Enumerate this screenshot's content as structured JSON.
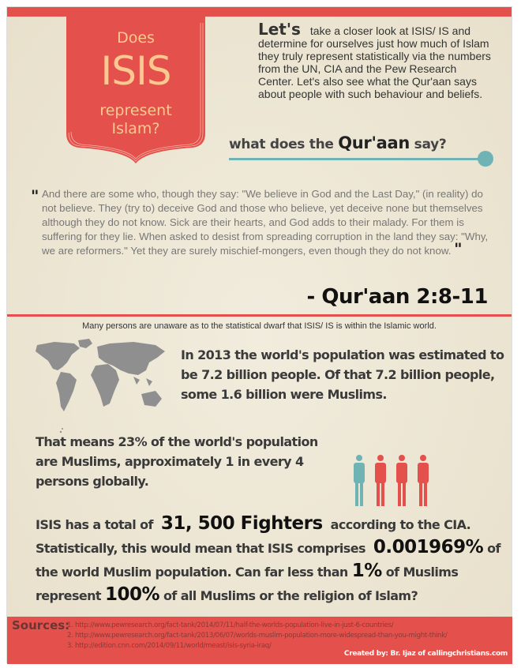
{
  "banner": {
    "line1": "Does",
    "line2": "ISIS",
    "line3": "represent",
    "line4": "Islam?"
  },
  "intro": {
    "lead": "Let's",
    "text": "take a closer look at ISIS/ IS and determine for ourselves just how much of Islam they truly represent statistically via the numbers from the UN, CIA and the Pew Research Center. Let's also see what the Qur'aan says about people with such behaviour and beliefs."
  },
  "quran_heading": {
    "pre": "what does the",
    "key": "Qur'aan",
    "post": "say?"
  },
  "quote": {
    "mark": "\"",
    "text": "And there are some who, though they say: \"We believe in God and the Last Day,\" (in reality) do not believe. They (try to) deceive God and those who believe, yet deceive none but themselves although they do not know. Sick are their hearts, and God adds to their malady. For them is suffering for they lie. When asked to desist from spreading corruption in the land they say: \"Why, we are reformers.\" Yet they are surely mischief-mongers, even though they do not know.",
    "reference": "- Qur'aan 2:8-11"
  },
  "caption": "Many persons are unaware as to the statistical dwarf that ISIS/ IS is within the Islamic world.",
  "population": "In 2013 the world's population was estimated to be 7.2 billion people. Of that 7.2 billion people, some 1.6 billion were Muslims.",
  "share": {
    "text": "That means 23% of the world's population are Muslims, approximately 1 in every 4 persons globally.",
    "icons": [
      {
        "color": "#6fb3b4"
      },
      {
        "color": "#e4504b"
      },
      {
        "color": "#e4504b"
      },
      {
        "color": "#e4504b"
      }
    ]
  },
  "isis": {
    "t1": "ISIS has a total of",
    "fighters": "31, 500 Fighters",
    "t2": "according to the CIA. Statistically, this would mean that ISIS comprises",
    "pct": "0.001969%",
    "t3": "of the world Muslim population. Can far less than",
    "one": "1%",
    "t4": "of Muslims represent",
    "hundred": "100%",
    "t5": "of all Muslims or the religion of Islam?"
  },
  "sources": {
    "label": "Sources:",
    "items": [
      "1. http://www.pewresearch.org/fact-tank/2014/07/11/half-the-worlds-population-live-in-just-6-countries/",
      "2. http://www.pewresearch.org/fact-tank/2013/06/07/worlds-muslim-population-more-widespread-than-you-might-think/",
      "3. http://edition.cnn.com/2014/09/11/world/meast/isis-syria-iraq/"
    ],
    "credit": "Created by: Br. Ijaz of callingchristians.com"
  },
  "colors": {
    "accent": "#e4504b",
    "teal": "#6fb3b4",
    "banner_text": "#fbc88f"
  }
}
